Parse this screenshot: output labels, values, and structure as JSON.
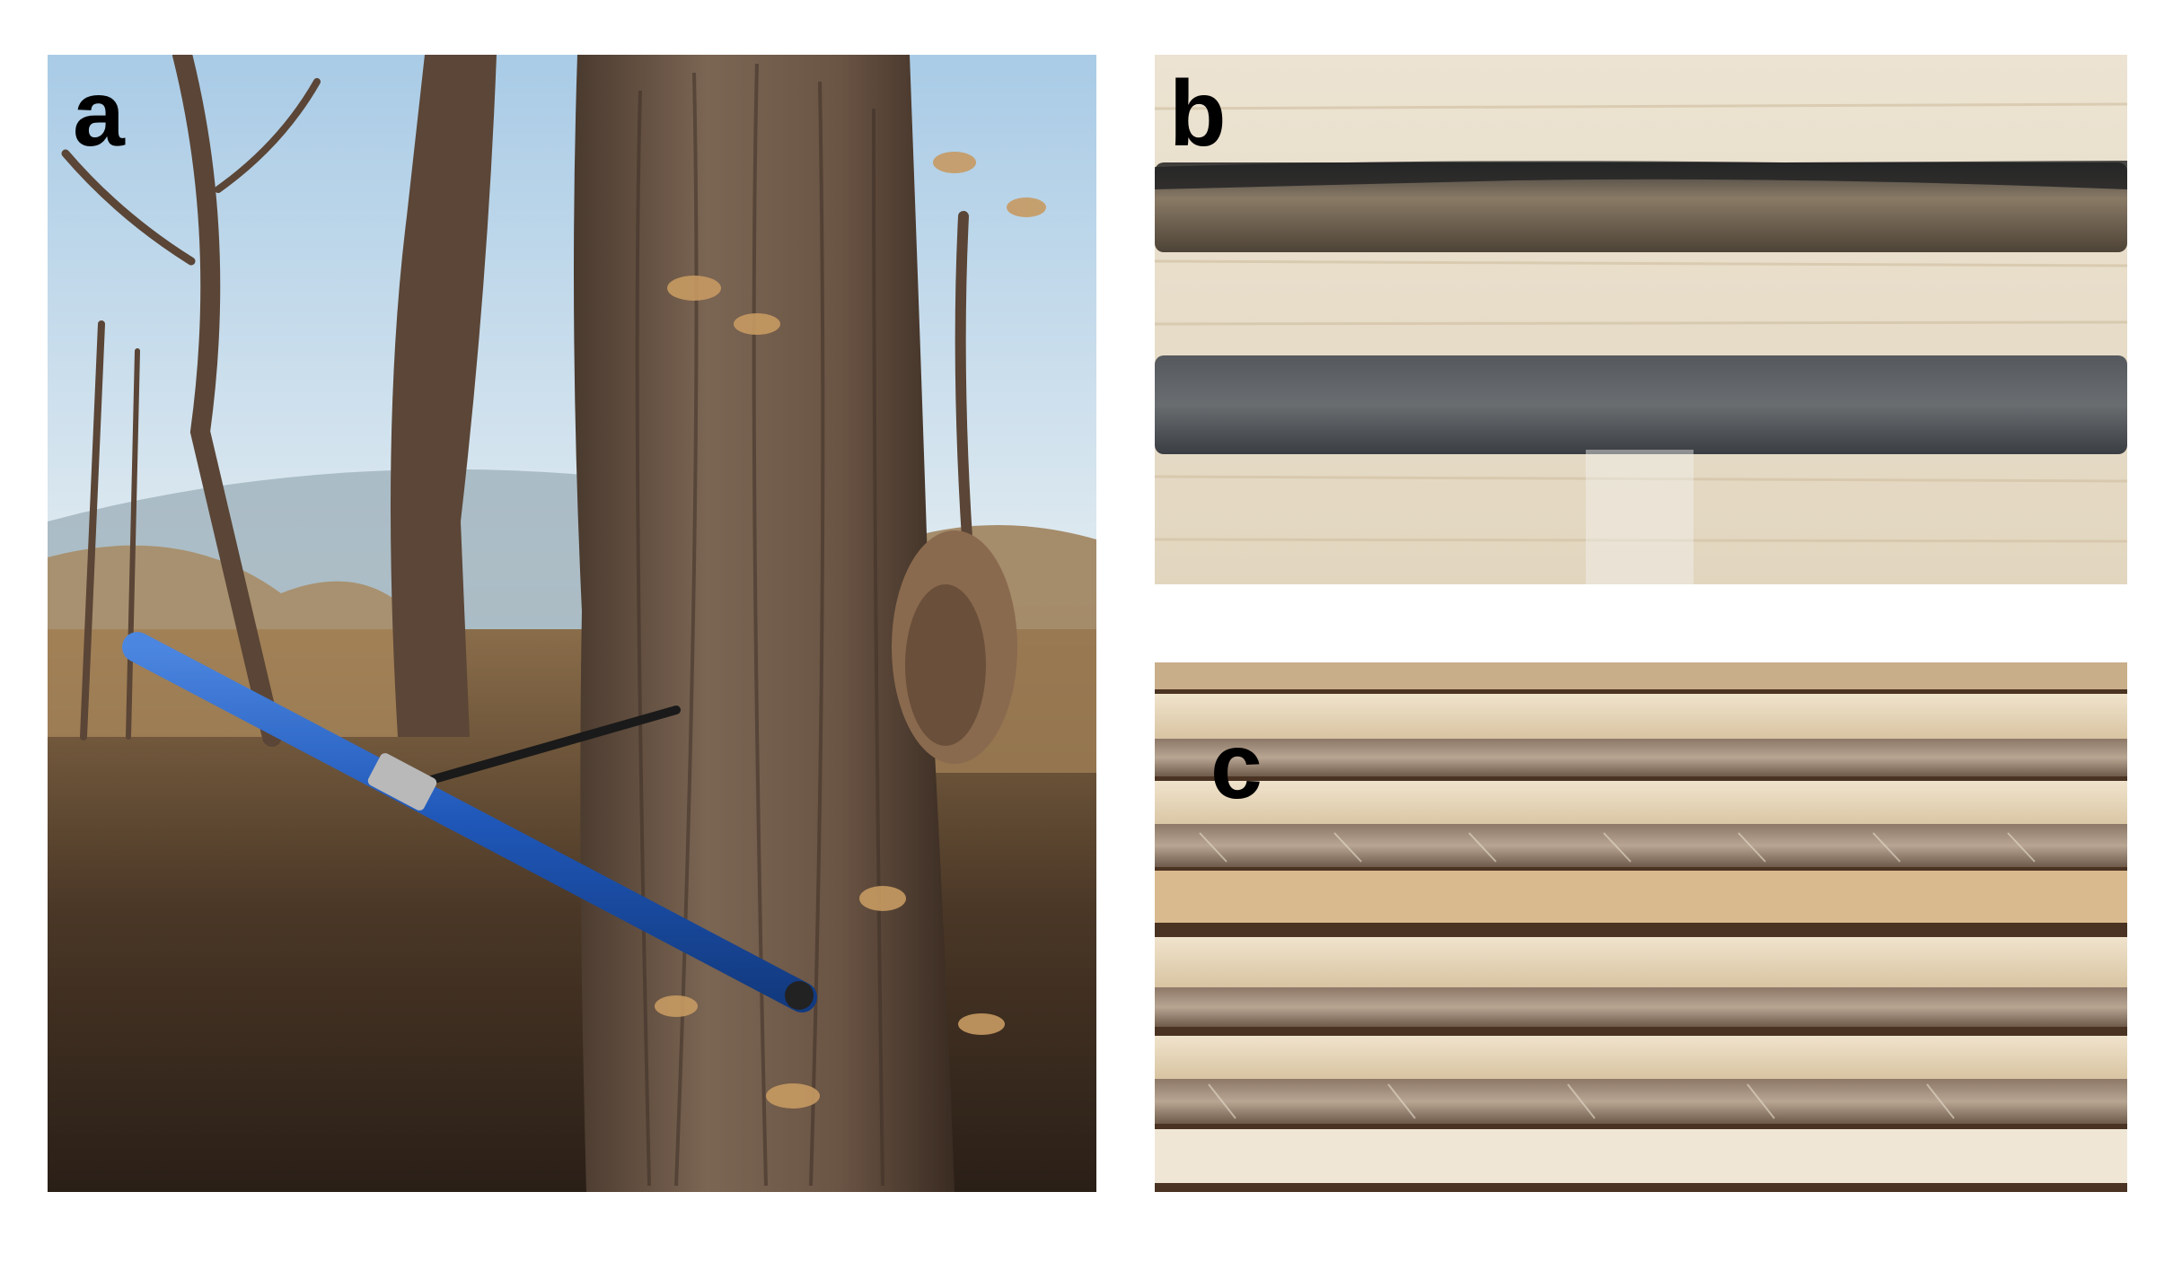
{
  "figure": {
    "panels": [
      {
        "label": "a",
        "content": "tree-trunk-with-increment-borer"
      },
      {
        "label": "b",
        "content": "mounted-wood-cores-dark"
      },
      {
        "label": "c",
        "content": "mounted-sanded-wood-cores"
      }
    ]
  },
  "colors": {
    "sky": "#cfe2ef",
    "bark": "#6b5342",
    "borer_handle": "#1f57b8",
    "mount_wood": "#e9dcc4",
    "core_dark": "#3e4248"
  }
}
